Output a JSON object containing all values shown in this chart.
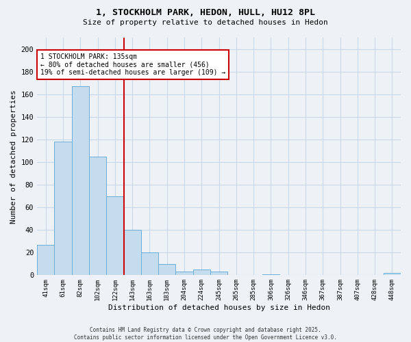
{
  "title": "1, STOCKHOLM PARK, HEDON, HULL, HU12 8PL",
  "subtitle": "Size of property relative to detached houses in Hedon",
  "xlabel": "Distribution of detached houses by size in Hedon",
  "ylabel": "Number of detached properties",
  "bar_labels": [
    "41sqm",
    "61sqm",
    "82sqm",
    "102sqm",
    "122sqm",
    "143sqm",
    "163sqm",
    "183sqm",
    "204sqm",
    "224sqm",
    "245sqm",
    "265sqm",
    "285sqm",
    "306sqm",
    "326sqm",
    "346sqm",
    "367sqm",
    "387sqm",
    "407sqm",
    "428sqm",
    "448sqm"
  ],
  "bar_values": [
    27,
    118,
    167,
    105,
    70,
    40,
    20,
    10,
    3,
    5,
    3,
    0,
    0,
    1,
    0,
    0,
    0,
    0,
    0,
    0,
    2
  ],
  "bar_color": "#c5dcee",
  "bar_edge_color": "#6aaed6",
  "vline_x": 4.5,
  "vline_color": "#cc0000",
  "annotation_text": "1 STOCKHOLM PARK: 135sqm\n← 80% of detached houses are smaller (456)\n19% of semi-detached houses are larger (109) →",
  "annotation_box_color": "#ffffff",
  "annotation_box_edge": "#cc0000",
  "ylim": [
    0,
    210
  ],
  "yticks": [
    0,
    20,
    40,
    60,
    80,
    100,
    120,
    140,
    160,
    180,
    200
  ],
  "grid_color": "#c8d8e8",
  "background_color": "#eef2f7",
  "footer_line1": "Contains HM Land Registry data © Crown copyright and database right 2025.",
  "footer_line2": "Contains public sector information licensed under the Open Government Licence v3.0."
}
